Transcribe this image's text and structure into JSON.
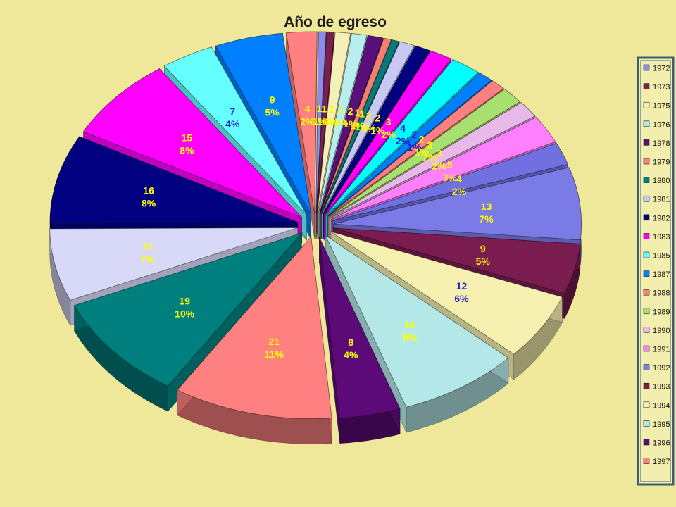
{
  "chart_data": {
    "type": "pie",
    "title": "Año de egreso",
    "legend_position": "right",
    "exploded": true,
    "three_d": true,
    "slices": [
      {
        "label": "1972",
        "value": 1,
        "pct": "1%",
        "color": "#8b8bea",
        "text_color": "#ffff00"
      },
      {
        "label": "1973",
        "value": 1,
        "pct": "1%",
        "color": "#7a2050",
        "text_color": "#ffff00"
      },
      {
        "label": "1975",
        "value": 2,
        "pct": "1%",
        "color": "#f4f0b8",
        "text_color": "#ffff00"
      },
      {
        "label": "1976",
        "value": 2,
        "pct": "1%",
        "color": "#b9eeee",
        "text_color": "#ffff00"
      },
      {
        "label": "1978",
        "value": 2,
        "pct": "1%",
        "color": "#5a0f7a",
        "text_color": "#ffff00"
      },
      {
        "label": "1979",
        "value": 1,
        "pct": "1%",
        "color": "#f08070",
        "text_color": "#ffff00"
      },
      {
        "label": "1980",
        "value": 1,
        "pct": "1%",
        "color": "#087a7a",
        "text_color": "#ffff00"
      },
      {
        "label": "1981",
        "value": 2,
        "pct": "1%",
        "color": "#c8c8f4",
        "text_color": "#ffff00"
      },
      {
        "label": "1982",
        "value": 2,
        "pct": "1%",
        "color": "#000080",
        "text_color": "#ffff00"
      },
      {
        "label": "1983",
        "value": 3,
        "pct": "2%",
        "color": "#ff00ff",
        "text_color": "#ffff00"
      },
      {
        "label": "1985",
        "value": 4,
        "pct": "2%",
        "color": "#00ffff",
        "text_color": "#2222cc"
      },
      {
        "label": "1987",
        "value": 2,
        "pct": "1%",
        "color": "#0080ff",
        "text_color": "#2222cc"
      },
      {
        "label": "1988",
        "value": 2,
        "pct": "1%",
        "color": "#ff8080",
        "text_color": "#ffff00"
      },
      {
        "label": "1989",
        "value": 3,
        "pct": "2%",
        "color": "#a8e070",
        "text_color": "#ffff00"
      },
      {
        "label": "1990",
        "value": 3,
        "pct": "2%",
        "color": "#e8b8e8",
        "text_color": "#ffff00"
      },
      {
        "label": "1991",
        "value": 5,
        "pct": "3%",
        "color": "#ff80ff",
        "text_color": "#ffff00"
      },
      {
        "label": "1992",
        "value": 4,
        "pct": "2%",
        "color": "#7070e0",
        "text_color": "#ffff00"
      },
      {
        "label": "1992",
        "value": 13,
        "pct": "7%",
        "color": "#7b7be8",
        "text_color": "#ffff00"
      },
      {
        "label": "1993",
        "value": 9,
        "pct": "5%",
        "color": "#7a1c50",
        "text_color": "#ffff00"
      },
      {
        "label": "1994",
        "value": 12,
        "pct": "6%",
        "color": "#f6f0b0",
        "text_color": "#2222cc"
      },
      {
        "label": "1995",
        "value": 16,
        "pct": "8%",
        "color": "#b4e8e8",
        "text_color": "#ffff00"
      },
      {
        "label": "1996",
        "value": 8,
        "pct": "4%",
        "color": "#5c0a78",
        "text_color": "#ffff00"
      },
      {
        "label": "1997",
        "value": 21,
        "pct": "11%",
        "color": "#ff8080",
        "text_color": "#ffff00"
      },
      {
        "label": "1980",
        "value": 19,
        "pct": "10%",
        "color": "#007f7f",
        "text_color": "#ffff00"
      },
      {
        "label": "1981",
        "value": 13,
        "pct": "7%",
        "color": "#d8d8f8",
        "text_color": "#ffff00"
      },
      {
        "label": "1982",
        "value": 16,
        "pct": "8%",
        "color": "#000080",
        "text_color": "#ffff00"
      },
      {
        "label": "1983",
        "value": 15,
        "pct": "8%",
        "color": "#ff00ff",
        "text_color": "#ffff00"
      },
      {
        "label": "1985",
        "value": 7,
        "pct": "4%",
        "color": "#66ffff",
        "text_color": "#2222cc"
      },
      {
        "label": "1987",
        "value": 9,
        "pct": "5%",
        "color": "#0080ff",
        "text_color": "#ffff00"
      },
      {
        "label": "1988",
        "value": 4,
        "pct": "2%",
        "color": "#ff8080",
        "text_color": "#ffff00"
      }
    ],
    "legend": [
      {
        "label": "1972",
        "color": "#8b8bea"
      },
      {
        "label": "1973",
        "color": "#7a2050"
      },
      {
        "label": "1975",
        "color": "#f6f0b0"
      },
      {
        "label": "1976",
        "color": "#b4e8e8"
      },
      {
        "label": "1978",
        "color": "#5a0f7a"
      },
      {
        "label": "1979",
        "color": "#ff8080"
      },
      {
        "label": "1980",
        "color": "#007f7f"
      },
      {
        "label": "1981",
        "color": "#c8c8f4"
      },
      {
        "label": "1982",
        "color": "#000080"
      },
      {
        "label": "1983",
        "color": "#ff00ff"
      },
      {
        "label": "1985",
        "color": "#66ffff"
      },
      {
        "label": "1987",
        "color": "#0080ff"
      },
      {
        "label": "1988",
        "color": "#ff8080"
      },
      {
        "label": "1989",
        "color": "#a8e070"
      },
      {
        "label": "1990",
        "color": "#e8b8e8"
      },
      {
        "label": "1991",
        "color": "#ff80ff"
      },
      {
        "label": "1992",
        "color": "#7b7be8"
      },
      {
        "label": "1993",
        "color": "#7a1c50"
      },
      {
        "label": "1994",
        "color": "#f6f0b0"
      },
      {
        "label": "1995",
        "color": "#b4e8e8"
      },
      {
        "label": "1996",
        "color": "#5c0a78"
      },
      {
        "label": "1997",
        "color": "#ff8080"
      }
    ]
  }
}
